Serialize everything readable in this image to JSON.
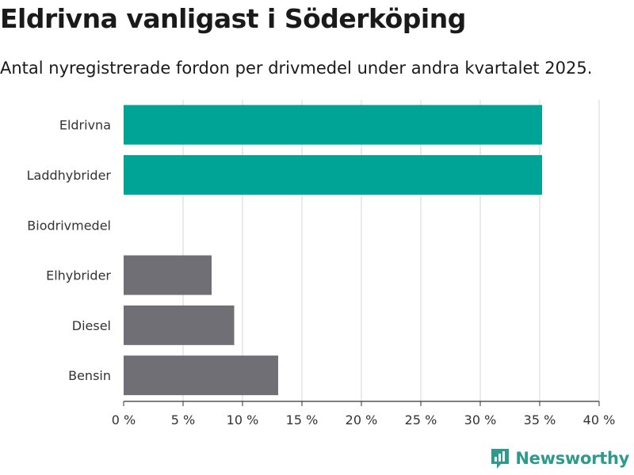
{
  "header": {
    "title": "Eldrivna vanligast i Söderköping",
    "subtitle": "Antal nyregistrerade fordon per drivmedel under andra kvartalet 2025."
  },
  "brand": {
    "logo_text": "Newsworthy",
    "logo_color": "#2e9a8d"
  },
  "colors": {
    "highlight": "#00a496",
    "default": "#6f6f75",
    "grid": "#dcdcdc",
    "axis": "#333333"
  },
  "chart_data": {
    "type": "bar",
    "orientation": "horizontal",
    "categories": [
      "Eldrivna",
      "Laddhybrider",
      "Biodrivmedel",
      "Elhybrider",
      "Diesel",
      "Bensin"
    ],
    "values": [
      35.2,
      35.2,
      0,
      7.4,
      9.3,
      13
    ],
    "bar_colors": [
      "#00a496",
      "#00a496",
      "#6f6f75",
      "#6f6f75",
      "#6f6f75",
      "#6f6f75"
    ],
    "xlim": [
      0,
      40
    ],
    "x_ticks": [
      0,
      5,
      10,
      15,
      20,
      25,
      30,
      35,
      40
    ],
    "x_tick_labels": [
      "0 %",
      "5 %",
      "10 %",
      "15 %",
      "20 %",
      "25 %",
      "30 %",
      "35 %",
      "40 %"
    ],
    "grid": true
  }
}
